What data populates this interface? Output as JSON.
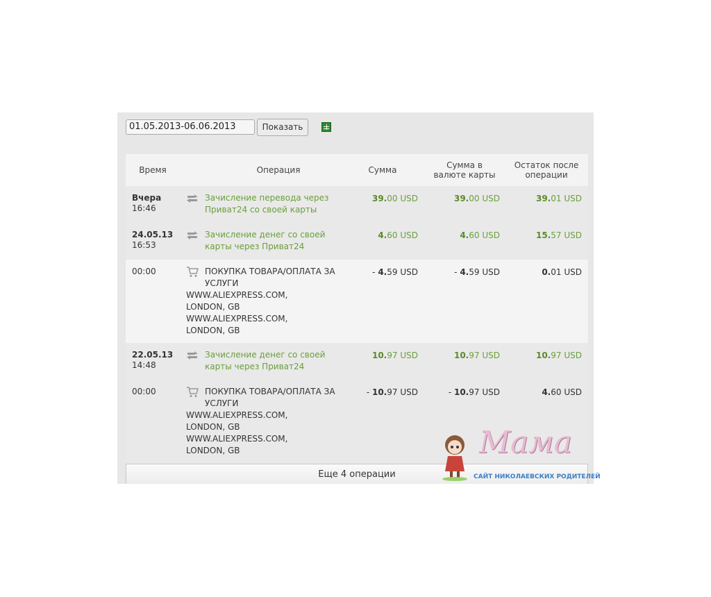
{
  "filter": {
    "date_range": "01.05.2013-06.06.2013",
    "show_label": "Показать",
    "export_icon": "excel-icon"
  },
  "columns": {
    "time": "Время",
    "operation": "Операция",
    "amount": "Сумма",
    "card_amount": "Сумма в валюте карты",
    "balance": "Остаток после операции"
  },
  "colors": {
    "credit": "#6a9f3a",
    "text": "#333333"
  },
  "rows": [
    {
      "date": "Вчера",
      "time": "16:46",
      "icon": "transfer-icon",
      "type": "credit",
      "title": "Зачисление перевода через Приват24 со своей карты",
      "details": [],
      "amount": {
        "sign": "",
        "int": "39.",
        "frac": "00",
        "cur": "USD"
      },
      "card_amount": {
        "sign": "",
        "int": "39.",
        "frac": "00",
        "cur": "USD"
      },
      "balance": {
        "int": "39.",
        "frac": "01",
        "cur": "USD",
        "green": true
      }
    },
    {
      "date": "24.05.13",
      "time": "16:53",
      "icon": "transfer-icon",
      "type": "credit",
      "title": "Зачисление денег со своей карты через Приват24",
      "details": [],
      "amount": {
        "sign": "",
        "int": "4.",
        "frac": "60",
        "cur": "USD"
      },
      "card_amount": {
        "sign": "",
        "int": "4.",
        "frac": "60",
        "cur": "USD"
      },
      "balance": {
        "int": "15.",
        "frac": "57",
        "cur": "USD",
        "green": true
      }
    },
    {
      "date": "",
      "time": "00:00",
      "icon": "cart-icon",
      "type": "debit",
      "title": "ПОКУПКА ТОВАРА/ОПЛАТА ЗА УСЛУГИ",
      "details": [
        "WWW.ALIEXPRESS.COM, LONDON, GB",
        "WWW.ALIEXPRESS.COM, LONDON, GB"
      ],
      "amount": {
        "sign": "- ",
        "int": "4.",
        "frac": "59",
        "cur": "USD"
      },
      "card_amount": {
        "sign": "- ",
        "int": "4.",
        "frac": "59",
        "cur": "USD"
      },
      "balance": {
        "int": "0.",
        "frac": "01",
        "cur": "USD",
        "green": false
      }
    },
    {
      "date": "22.05.13",
      "time": "14:48",
      "icon": "transfer-icon",
      "type": "credit",
      "title": "Зачисление денег со своей карты через Приват24",
      "details": [],
      "amount": {
        "sign": "",
        "int": "10.",
        "frac": "97",
        "cur": "USD"
      },
      "card_amount": {
        "sign": "",
        "int": "10.",
        "frac": "97",
        "cur": "USD"
      },
      "balance": {
        "int": "10.",
        "frac": "97",
        "cur": "USD",
        "green": true
      }
    },
    {
      "date": "",
      "time": "00:00",
      "icon": "cart-icon",
      "type": "debit",
      "title": "ПОКУПКА ТОВАРА/ОПЛАТА ЗА УСЛУГИ",
      "details": [
        "WWW.ALIEXPRESS.COM, LONDON, GB",
        "WWW.ALIEXPRESS.COM, LONDON, GB"
      ],
      "amount": {
        "sign": "- ",
        "int": "10.",
        "frac": "97",
        "cur": "USD"
      },
      "card_amount": {
        "sign": "- ",
        "int": "10.",
        "frac": "97",
        "cur": "USD"
      },
      "balance": {
        "int": "4.",
        "frac": "60",
        "cur": "USD",
        "green": false
      }
    }
  ],
  "more_label": "Еще 4 операции",
  "watermark": {
    "script": "Мама",
    "subtitle": "САЙТ НИКОЛАЕВСКИХ РОДИТЕЛЕЙ"
  }
}
